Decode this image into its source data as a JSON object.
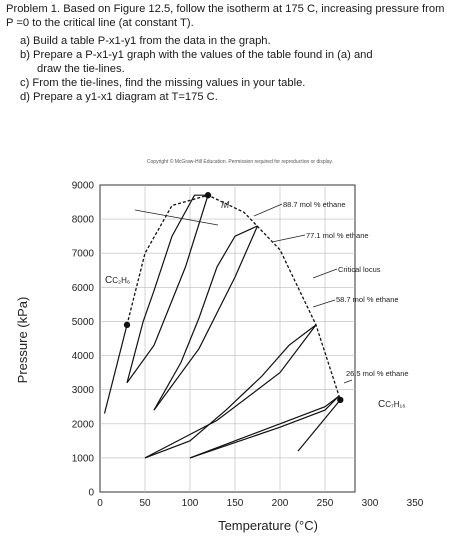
{
  "problem": {
    "intro": "Problem 1. Based on Figure 12.5, follow the isotherm at 175 C, increasing pressure from P =0 to the critical line (at constant T).",
    "tasks": [
      {
        "label": "a) Build a table P-x1-y1 from the data in the graph."
      },
      {
        "label": "b) Prepare a P-x1-y1 graph with the values of the table found in (a) and",
        "cont": "draw the tie-lines."
      },
      {
        "label": "c) From the tie-lines, find the missing values in your table."
      },
      {
        "label": "d) Prepare a y1-x1 diagram at T=175 C."
      }
    ]
  },
  "figure": {
    "copyright": "Copyright © McGraw-Hill Education. Permission required for reproduction or display.",
    "annotations": {
      "m_label": "M",
      "c2h6": "C",
      "c2h6_sub": "C₂H₆",
      "c7h16_sub": "C₇H₁₆",
      "ann_887": "88.7 mol % ethane",
      "ann_771": "77.1 mol % ethane",
      "ann_critical": "Critical locus",
      "ann_587": "58.7 mol % ethane",
      "ann_265": "26.5 mol % ethane"
    }
  },
  "chart_data": {
    "type": "line",
    "xlabel": "Temperature (°C)",
    "ylabel": "Pressure (kPa)",
    "xlim": [
      0,
      350
    ],
    "ylim": [
      0,
      9000
    ],
    "x_ticks": [
      "0",
      "50",
      "100",
      "150",
      "200",
      "250",
      "300",
      "350"
    ],
    "y_ticks": [
      "0",
      "1000",
      "2000",
      "3000",
      "4000",
      "5000",
      "6000",
      "7000",
      "8000",
      "9000"
    ],
    "grid": true,
    "series": [
      {
        "name": "C₂H₆",
        "points": [
          [
            30,
            4900
          ],
          [
            5,
            2300
          ]
        ]
      },
      {
        "name": "C₇H�16",
        "points": [
          [
            267,
            2700
          ],
          [
            220,
            1200
          ]
        ]
      },
      {
        "name": "88.7 mol % ethane",
        "points": [
          [
            120,
            8700
          ],
          [
            105,
            8700
          ],
          [
            80,
            7500
          ],
          [
            60,
            5900
          ],
          [
            48,
            5000
          ],
          [
            35,
            3700
          ],
          [
            30,
            3200
          ]
        ]
      },
      {
        "name": "77.1 mol % ethane",
        "points": [
          [
            175,
            7800
          ],
          [
            150,
            7500
          ],
          [
            130,
            6600
          ],
          [
            110,
            5100
          ],
          [
            90,
            3800
          ],
          [
            60,
            2400
          ]
        ]
      },
      {
        "name": "58.7 mol % ethane",
        "points": [
          [
            240,
            4900
          ],
          [
            210,
            4300
          ],
          [
            180,
            3400
          ],
          [
            140,
            2400
          ],
          [
            100,
            1500
          ],
          [
            50,
            1000
          ]
        ]
      },
      {
        "name": "26.5 mol % ethane",
        "points": [
          [
            265,
            2800
          ],
          [
            250,
            2500
          ],
          [
            200,
            2000
          ],
          [
            150,
            1500
          ],
          [
            100,
            1000
          ]
        ]
      },
      {
        "name": "Critical locus",
        "points": [
          [
            30,
            4900
          ],
          [
            50,
            7000
          ],
          [
            80,
            8400
          ],
          [
            120,
            8700
          ],
          [
            160,
            8200
          ],
          [
            200,
            7100
          ],
          [
            240,
            4900
          ],
          [
            267,
            2700
          ]
        ]
      }
    ],
    "points": [
      {
        "name": "M",
        "x": 120,
        "y": 8700
      },
      {
        "name": "C₂H₆",
        "x": 30,
        "y": 4900
      },
      {
        "name": "C₇H₁₆",
        "x": 267,
        "y": 2700
      }
    ]
  }
}
